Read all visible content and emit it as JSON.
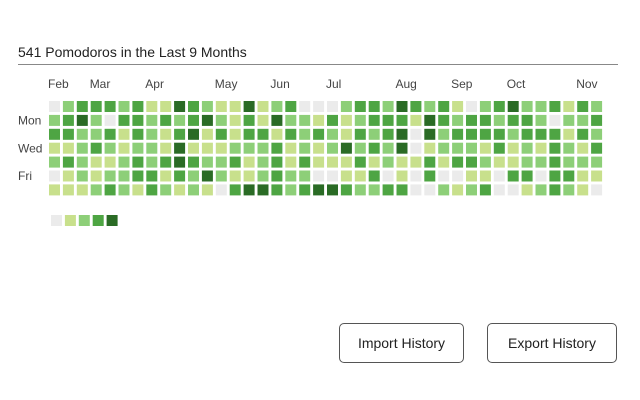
{
  "header": {
    "title": "541 Pomodoros in the Last 9 Months"
  },
  "months": [
    "Feb",
    "Mar",
    "Apr",
    "May",
    "Jun",
    "Jul",
    "Aug",
    "Sep",
    "Oct",
    "Nov"
  ],
  "days": [
    "Mon",
    "Wed",
    "Fri"
  ],
  "legend": {
    "colors": [
      "#ebebeb",
      "#c8e08c",
      "#8dcf78",
      "#4ea543",
      "#2a6b25"
    ]
  },
  "weeks": [
    [
      0,
      2,
      3,
      1,
      2,
      0,
      1
    ],
    [
      2,
      3,
      3,
      1,
      3,
      1,
      1
    ],
    [
      3,
      4,
      2,
      2,
      2,
      2,
      1
    ],
    [
      3,
      2,
      2,
      3,
      1,
      1,
      2
    ],
    [
      3,
      0,
      3,
      2,
      1,
      2,
      3
    ],
    [
      2,
      3,
      1,
      1,
      2,
      2,
      2
    ],
    [
      3,
      3,
      3,
      2,
      3,
      3,
      1
    ],
    [
      1,
      2,
      2,
      2,
      2,
      3,
      3
    ],
    [
      1,
      3,
      1,
      1,
      3,
      1,
      2
    ],
    [
      4,
      2,
      3,
      4,
      4,
      3,
      1
    ],
    [
      3,
      3,
      4,
      1,
      3,
      2,
      2
    ],
    [
      2,
      4,
      1,
      1,
      2,
      4,
      1
    ],
    [
      1,
      2,
      3,
      1,
      2,
      2,
      0
    ],
    [
      1,
      1,
      1,
      2,
      3,
      1,
      3
    ],
    [
      4,
      3,
      3,
      2,
      1,
      1,
      4
    ],
    [
      1,
      1,
      3,
      2,
      2,
      2,
      4
    ],
    [
      2,
      4,
      1,
      3,
      3,
      3,
      3
    ],
    [
      3,
      2,
      3,
      1,
      1,
      2,
      2
    ],
    [
      0,
      2,
      2,
      2,
      3,
      2,
      3
    ],
    [
      0,
      1,
      3,
      1,
      1,
      0,
      4
    ],
    [
      0,
      3,
      2,
      2,
      1,
      0,
      4
    ],
    [
      2,
      1,
      1,
      4,
      1,
      1,
      3
    ],
    [
      3,
      2,
      3,
      2,
      3,
      1,
      2
    ],
    [
      3,
      3,
      2,
      3,
      1,
      3,
      2
    ],
    [
      2,
      3,
      3,
      2,
      2,
      0,
      3
    ],
    [
      4,
      3,
      4,
      4,
      1,
      1,
      3
    ],
    [
      3,
      1,
      0,
      0,
      1,
      0,
      0
    ],
    [
      2,
      4,
      4,
      1,
      3,
      3,
      0
    ],
    [
      3,
      3,
      2,
      2,
      1,
      0,
      2
    ],
    [
      1,
      2,
      3,
      2,
      3,
      0,
      1
    ],
    [
      0,
      3,
      3,
      2,
      3,
      1,
      2
    ],
    [
      2,
      3,
      3,
      1,
      2,
      1,
      3
    ],
    [
      3,
      2,
      3,
      3,
      1,
      0,
      0
    ],
    [
      4,
      3,
      2,
      1,
      1,
      3,
      0
    ],
    [
      2,
      3,
      3,
      2,
      2,
      3,
      1
    ],
    [
      2,
      2,
      3,
      1,
      2,
      0,
      2
    ],
    [
      3,
      0,
      3,
      3,
      3,
      3,
      3
    ],
    [
      1,
      2,
      1,
      2,
      2,
      3,
      2
    ],
    [
      3,
      2,
      3,
      1,
      2,
      1,
      1
    ],
    [
      2,
      3,
      2,
      3,
      2,
      1,
      0
    ]
  ],
  "buttons": [
    "Import History",
    "Export History"
  ]
}
